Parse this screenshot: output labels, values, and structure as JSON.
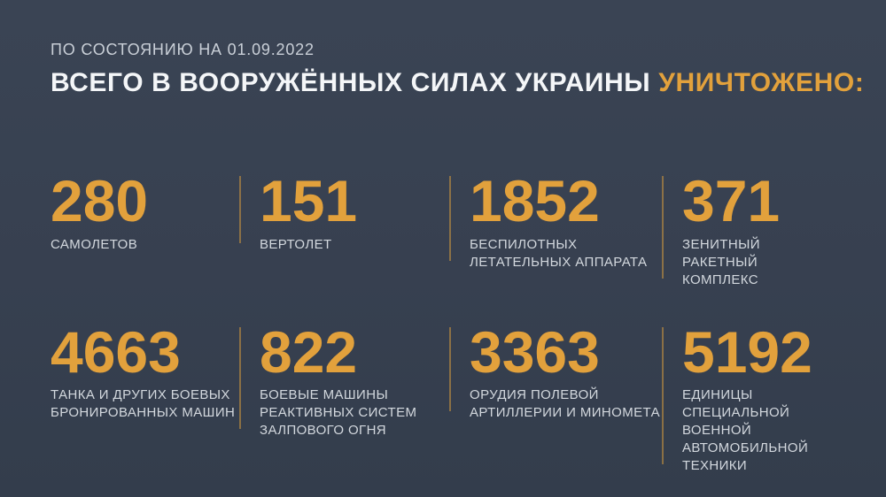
{
  "page": {
    "background_color": "#374050",
    "accent_color": "#E2A13C",
    "text_color": "#D3D8DE",
    "divider_color": "rgba(226,161,60,0.5)"
  },
  "header": {
    "date_line": "ПО СОСТОЯНИЮ НА 01.09.2022",
    "title_main": "ВСЕГО В ВООРУЖЁННЫХ СИЛАХ УКРАИНЫ",
    "title_accent": "УНИЧТОЖЕНО:"
  },
  "stats": [
    {
      "value": "280",
      "label": "САМОЛЕТОВ"
    },
    {
      "value": "151",
      "label": "ВЕРТОЛЕТ"
    },
    {
      "value": "1852",
      "label": "БЕСПИЛОТНЫХ\nЛЕТАТЕЛЬНЫХ АППАРАТА"
    },
    {
      "value": "371",
      "label": "ЗЕНИТНЫЙ РАКЕТНЫЙ\nКОМПЛЕКС"
    },
    {
      "value": "4663",
      "label": "ТАНКА И ДРУГИХ БОЕВЫХ\nБРОНИРОВАННЫХ МАШИН"
    },
    {
      "value": "822",
      "label": "БОЕВЫЕ МАШИНЫ\nРЕАКТИВНЫХ СИСТЕМ\nЗАЛПОВОГО ОГНЯ"
    },
    {
      "value": "3363",
      "label": "ОРУДИЯ ПОЛЕВОЙ\nАРТИЛЛЕРИИ И МИНОМЕТА"
    },
    {
      "value": "5192",
      "label": "ЕДИНИЦЫ СПЕЦИАЛЬНОЙ\nВОЕННОЙ АВТОМОБИЛЬНОЙ\nТЕХНИКИ"
    }
  ],
  "chart_data": {
    "type": "table",
    "title": "ВСЕГО В ВООРУЖЁННЫХ СИЛАХ УКРАИНЫ УНИЧТОЖЕНО:",
    "subtitle": "ПО СОСТОЯНИЮ НА 01.09.2022",
    "categories": [
      "САМОЛЕТОВ",
      "ВЕРТОЛЕТ",
      "БЕСПИЛОТНЫХ ЛЕТАТЕЛЬНЫХ АППАРАТА",
      "ЗЕНИТНЫЙ РАКЕТНЫЙ КОМПЛЕКС",
      "ТАНКА И ДРУГИХ БОЕВЫХ БРОНИРОВАННЫХ МАШИН",
      "БОЕВЫЕ МАШИНЫ РЕАКТИВНЫХ СИСТЕМ ЗАЛПОВОГО ОГНЯ",
      "ОРУДИЯ ПОЛЕВОЙ АРТИЛЛЕРИИ И МИНОМЕТА",
      "ЕДИНИЦЫ СПЕЦИАЛЬНОЙ ВОЕННОЙ АВТОМОБИЛЬНОЙ ТЕХНИКИ"
    ],
    "values": [
      280,
      151,
      1852,
      371,
      4663,
      822,
      3363,
      5192
    ],
    "layout": "2 rows x 4 columns of KPI counters, grid off, no axes"
  }
}
